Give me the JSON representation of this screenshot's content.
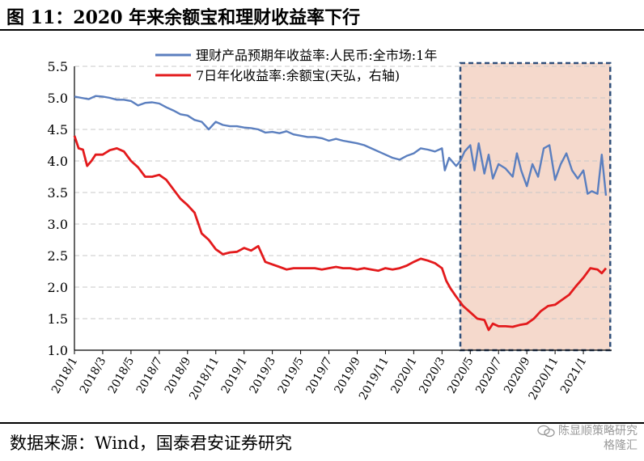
{
  "title": "图 11：2020 年来余额宝和理财收益率下行",
  "source": "数据来源：Wind，国泰君安证券研究",
  "watermark": {
    "line1": "陈显顺策略研究",
    "line2": "格隆汇"
  },
  "chart_data": {
    "type": "line",
    "title": "",
    "xlabel": "",
    "ylabel": "",
    "ylim": [
      1.0,
      5.5
    ],
    "yticks": [
      "1.0",
      "1.5",
      "2.0",
      "2.5",
      "3.0",
      "3.5",
      "4.0",
      "4.5",
      "5.0",
      "5.5"
    ],
    "xticks": [
      "2018/1",
      "2018/3",
      "2018/5",
      "2018/7",
      "2018/9",
      "2018/11",
      "2019/1",
      "2019/3",
      "2019/5",
      "2019/7",
      "2019/9",
      "2019/11",
      "2020/1",
      "2020/3",
      "2020/5",
      "2020/7",
      "2020/9",
      "2020/11",
      "2021/1"
    ],
    "grid": "horizontal dashed",
    "legend": "top-center",
    "highlight": {
      "from": "2020/4",
      "to": "2021/2"
    },
    "colors": {
      "wealth": "#5B7FBF",
      "yuebao": "#E31A1C",
      "highlight_fill": "#F5D9CC",
      "highlight_border": "#2F4F7A"
    },
    "series": [
      {
        "name": "理财产品预期年收益率:人民币:全市场:1年",
        "color": "#5B7FBF",
        "points": [
          [
            0,
            5.02
          ],
          [
            0.5,
            5.0
          ],
          [
            1,
            4.98
          ],
          [
            1.5,
            5.03
          ],
          [
            2,
            5.02
          ],
          [
            2.5,
            5.0
          ],
          [
            3,
            4.97
          ],
          [
            3.5,
            4.97
          ],
          [
            4,
            4.95
          ],
          [
            4.5,
            4.88
          ],
          [
            5,
            4.92
          ],
          [
            5.5,
            4.93
          ],
          [
            6,
            4.91
          ],
          [
            6.5,
            4.85
          ],
          [
            7,
            4.8
          ],
          [
            7.5,
            4.74
          ],
          [
            8,
            4.72
          ],
          [
            8.5,
            4.65
          ],
          [
            9,
            4.62
          ],
          [
            9.5,
            4.5
          ],
          [
            10,
            4.62
          ],
          [
            10.5,
            4.57
          ],
          [
            11,
            4.55
          ],
          [
            11.5,
            4.55
          ],
          [
            12,
            4.53
          ],
          [
            12.5,
            4.52
          ],
          [
            13,
            4.5
          ],
          [
            13.5,
            4.45
          ],
          [
            14,
            4.46
          ],
          [
            14.5,
            4.44
          ],
          [
            15,
            4.47
          ],
          [
            15.5,
            4.42
          ],
          [
            16,
            4.4
          ],
          [
            16.5,
            4.38
          ],
          [
            17,
            4.38
          ],
          [
            17.5,
            4.36
          ],
          [
            18,
            4.32
          ],
          [
            18.5,
            4.35
          ],
          [
            19,
            4.32
          ],
          [
            19.5,
            4.3
          ],
          [
            20,
            4.28
          ],
          [
            20.5,
            4.25
          ],
          [
            21,
            4.2
          ],
          [
            21.5,
            4.15
          ],
          [
            22,
            4.1
          ],
          [
            22.5,
            4.05
          ],
          [
            23,
            4.02
          ],
          [
            23.5,
            4.08
          ],
          [
            24,
            4.12
          ],
          [
            24.5,
            4.2
          ],
          [
            25,
            4.18
          ],
          [
            25.5,
            4.15
          ],
          [
            26,
            4.2
          ],
          [
            26.2,
            3.85
          ],
          [
            26.5,
            4.05
          ],
          [
            27,
            3.92
          ],
          [
            27.3,
            4.0
          ],
          [
            27.6,
            4.15
          ],
          [
            28,
            4.25
          ],
          [
            28.3,
            3.85
          ],
          [
            28.6,
            4.28
          ],
          [
            29,
            3.8
          ],
          [
            29.3,
            4.1
          ],
          [
            29.6,
            3.72
          ],
          [
            30,
            3.95
          ],
          [
            30.5,
            3.88
          ],
          [
            31,
            3.75
          ],
          [
            31.3,
            4.12
          ],
          [
            31.6,
            3.85
          ],
          [
            32,
            3.6
          ],
          [
            32.4,
            3.95
          ],
          [
            32.8,
            3.75
          ],
          [
            33.2,
            4.2
          ],
          [
            33.6,
            4.25
          ],
          [
            34,
            3.7
          ],
          [
            34.4,
            3.95
          ],
          [
            34.8,
            4.12
          ],
          [
            35.2,
            3.85
          ],
          [
            35.6,
            3.72
          ],
          [
            36,
            3.85
          ],
          [
            36.3,
            3.48
          ],
          [
            36.6,
            3.52
          ],
          [
            37,
            3.48
          ],
          [
            37.3,
            4.1
          ],
          [
            37.6,
            3.45
          ]
        ]
      },
      {
        "name": "7日年化收益率:余额宝(天弘，右轴)",
        "color": "#E31A1C",
        "points": [
          [
            0,
            4.4
          ],
          [
            0.3,
            4.2
          ],
          [
            0.6,
            4.18
          ],
          [
            0.9,
            3.92
          ],
          [
            1.2,
            4.0
          ],
          [
            1.5,
            4.1
          ],
          [
            2,
            4.1
          ],
          [
            2.5,
            4.17
          ],
          [
            3,
            4.2
          ],
          [
            3.5,
            4.15
          ],
          [
            4,
            4.0
          ],
          [
            4.5,
            3.9
          ],
          [
            5,
            3.75
          ],
          [
            5.5,
            3.75
          ],
          [
            6,
            3.78
          ],
          [
            6.5,
            3.7
          ],
          [
            7,
            3.55
          ],
          [
            7.5,
            3.4
          ],
          [
            8,
            3.3
          ],
          [
            8.5,
            3.18
          ],
          [
            9,
            2.85
          ],
          [
            9.5,
            2.75
          ],
          [
            10,
            2.6
          ],
          [
            10.5,
            2.52
          ],
          [
            11,
            2.55
          ],
          [
            11.5,
            2.56
          ],
          [
            12,
            2.62
          ],
          [
            12.5,
            2.58
          ],
          [
            13,
            2.65
          ],
          [
            13.5,
            2.4
          ],
          [
            14,
            2.36
          ],
          [
            14.5,
            2.32
          ],
          [
            15,
            2.28
          ],
          [
            15.5,
            2.3
          ],
          [
            16,
            2.3
          ],
          [
            16.5,
            2.3
          ],
          [
            17,
            2.3
          ],
          [
            17.5,
            2.28
          ],
          [
            18,
            2.3
          ],
          [
            18.5,
            2.32
          ],
          [
            19,
            2.3
          ],
          [
            19.5,
            2.3
          ],
          [
            20,
            2.28
          ],
          [
            20.5,
            2.3
          ],
          [
            21,
            2.28
          ],
          [
            21.5,
            2.26
          ],
          [
            22,
            2.3
          ],
          [
            22.5,
            2.28
          ],
          [
            23,
            2.3
          ],
          [
            23.5,
            2.34
          ],
          [
            24,
            2.4
          ],
          [
            24.5,
            2.45
          ],
          [
            25,
            2.42
          ],
          [
            25.5,
            2.38
          ],
          [
            26,
            2.3
          ],
          [
            26.3,
            2.1
          ],
          [
            26.6,
            1.98
          ],
          [
            27,
            1.85
          ],
          [
            27.5,
            1.7
          ],
          [
            28,
            1.6
          ],
          [
            28.5,
            1.5
          ],
          [
            29,
            1.48
          ],
          [
            29.3,
            1.32
          ],
          [
            29.6,
            1.42
          ],
          [
            30,
            1.38
          ],
          [
            30.5,
            1.38
          ],
          [
            31,
            1.37
          ],
          [
            31.5,
            1.4
          ],
          [
            32,
            1.42
          ],
          [
            32.5,
            1.5
          ],
          [
            33,
            1.62
          ],
          [
            33.5,
            1.7
          ],
          [
            34,
            1.72
          ],
          [
            34.5,
            1.8
          ],
          [
            35,
            1.88
          ],
          [
            35.5,
            2.02
          ],
          [
            36,
            2.15
          ],
          [
            36.5,
            2.3
          ],
          [
            37,
            2.28
          ],
          [
            37.3,
            2.22
          ],
          [
            37.6,
            2.3
          ]
        ]
      }
    ]
  }
}
